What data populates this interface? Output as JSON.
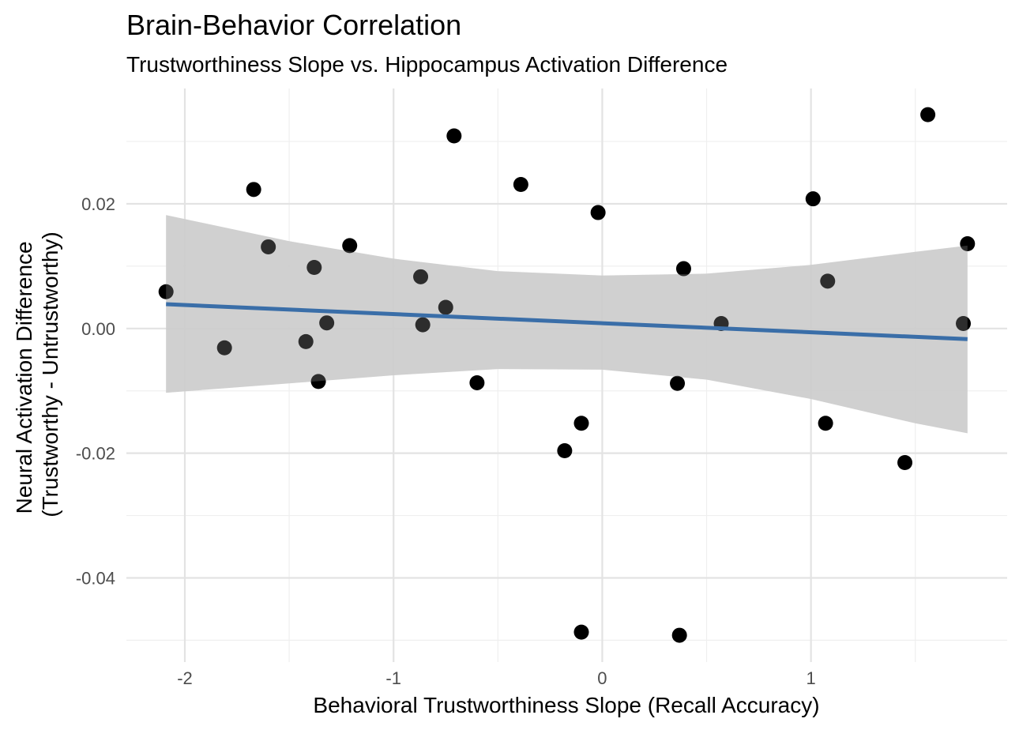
{
  "chart_data": {
    "type": "scatter",
    "title": "Brain-Behavior Correlation",
    "subtitle": "Trustworthiness Slope vs. Hippocampus Activation Difference",
    "xlabel": "Behavioral Trustworthiness Slope (Recall Accuracy)",
    "ylabel": [
      "Neural Activation Difference",
      "(Trustworthy - Untrustworthy)"
    ],
    "xlim": [
      -2.28,
      1.94
    ],
    "ylim": [
      -0.0535,
      0.0385
    ],
    "x_ticks": [
      -2,
      -1,
      0,
      1
    ],
    "x_tick_labels": [
      "-2",
      "-1",
      "0",
      "1"
    ],
    "y_ticks": [
      -0.04,
      -0.02,
      0.0,
      0.02
    ],
    "y_tick_labels": [
      "-0.04",
      "-0.02",
      "0.00",
      "0.02"
    ],
    "grid": true,
    "points": [
      {
        "x": -2.09,
        "y": 0.0059
      },
      {
        "x": -1.81,
        "y": -0.0031
      },
      {
        "x": -1.67,
        "y": 0.0223
      },
      {
        "x": -1.6,
        "y": 0.0131
      },
      {
        "x": -1.42,
        "y": -0.0021
      },
      {
        "x": -1.38,
        "y": 0.0098
      },
      {
        "x": -1.36,
        "y": -0.0085
      },
      {
        "x": -1.32,
        "y": 0.0009
      },
      {
        "x": -1.21,
        "y": 0.0133
      },
      {
        "x": -0.87,
        "y": 0.0083
      },
      {
        "x": -0.86,
        "y": 0.0006
      },
      {
        "x": -0.75,
        "y": 0.0034
      },
      {
        "x": -0.71,
        "y": 0.0309
      },
      {
        "x": -0.6,
        "y": -0.0087
      },
      {
        "x": -0.39,
        "y": 0.0231
      },
      {
        "x": -0.18,
        "y": -0.0196
      },
      {
        "x": -0.1,
        "y": -0.0152
      },
      {
        "x": -0.1,
        "y": -0.0487
      },
      {
        "x": -0.02,
        "y": 0.0186
      },
      {
        "x": 0.36,
        "y": -0.0088
      },
      {
        "x": 0.37,
        "y": -0.0492
      },
      {
        "x": 0.39,
        "y": 0.0096
      },
      {
        "x": 0.57,
        "y": 0.0008
      },
      {
        "x": 1.01,
        "y": 0.0208
      },
      {
        "x": 1.07,
        "y": -0.0152
      },
      {
        "x": 1.08,
        "y": 0.0076
      },
      {
        "x": 1.45,
        "y": -0.0215
      },
      {
        "x": 1.56,
        "y": 0.0343
      },
      {
        "x": 1.73,
        "y": 0.0008
      },
      {
        "x": 1.75,
        "y": 0.0136
      }
    ],
    "trend_line": {
      "x": [
        -2.09,
        1.75
      ],
      "y": [
        0.0039,
        -0.0017
      ]
    },
    "confidence_band": {
      "x": [
        -2.09,
        -1.5,
        -1.0,
        -0.5,
        0.0,
        0.5,
        1.0,
        1.5,
        1.75
      ],
      "upper": [
        0.0182,
        0.014,
        0.0112,
        0.0092,
        0.0085,
        0.0088,
        0.0102,
        0.0123,
        0.0133
      ],
      "lower": [
        -0.0103,
        -0.0088,
        -0.0075,
        -0.0065,
        -0.0066,
        -0.0082,
        -0.0113,
        -0.0152,
        -0.0168
      ]
    },
    "colors": {
      "points": "#000000",
      "trend_line": "#3a6ea8",
      "band": "#cccccc",
      "background": "#ffffff"
    }
  }
}
